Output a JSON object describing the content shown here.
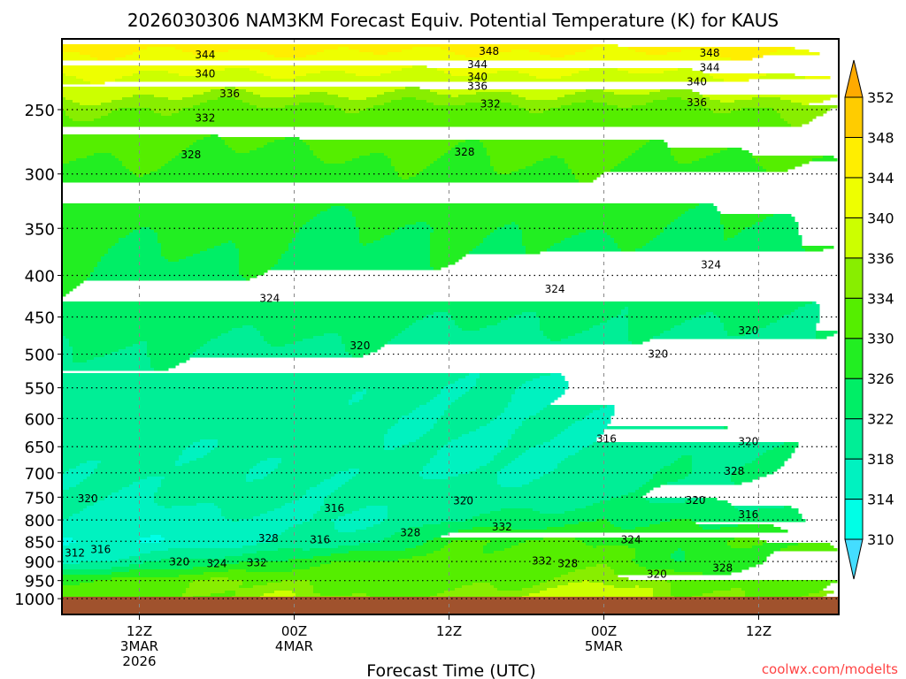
{
  "chart_data": {
    "type": "heatmap",
    "title": "2026030306 NAM3KM Forecast Equiv. Potential Temperature (K) for KAUS",
    "xlabel": "Forecast Time (UTC)",
    "ylabel": "",
    "credit": "coolwx.com/modelts",
    "x_units": "forecast hours",
    "xlim": [
      0,
      60
    ],
    "ylim_hpa": [
      1000,
      209
    ],
    "y_ticks": [
      250,
      300,
      350,
      400,
      450,
      500,
      550,
      600,
      650,
      700,
      750,
      800,
      850,
      900,
      950,
      1000
    ],
    "x_ticks": [
      {
        "hour": 6,
        "lines": [
          "12Z",
          "3MAR",
          "2026"
        ]
      },
      {
        "hour": 18,
        "lines": [
          "00Z",
          "4MAR"
        ]
      },
      {
        "hour": 30,
        "lines": [
          "12Z"
        ]
      },
      {
        "hour": 42,
        "lines": [
          "00Z",
          "5MAR"
        ]
      },
      {
        "hour": 54,
        "lines": [
          "12Z"
        ]
      }
    ],
    "colorbar": {
      "levels": [
        310,
        314,
        318,
        322,
        326,
        330,
        334,
        336,
        340,
        344,
        348,
        352
      ],
      "labels": [
        "310",
        "314",
        "318",
        "322",
        "326",
        "330",
        "334",
        "336",
        "340",
        "344",
        "348",
        "352"
      ],
      "colors": [
        "#44ddff",
        "#00ffe6",
        "#00f2c0",
        "#00ee96",
        "#00ee66",
        "#22ee22",
        "#55ee00",
        "#88ee00",
        "#ccff00",
        "#eeff00",
        "#ffee00",
        "#ffcc00",
        "#ffaa00"
      ]
    },
    "ground_color": "#a0522d",
    "times": [
      0,
      6,
      12,
      18,
      24,
      30,
      36,
      42,
      48,
      54,
      60
    ],
    "pressures": [
      200,
      250,
      300,
      350,
      400,
      450,
      500,
      550,
      600,
      650,
      700,
      750,
      800,
      850,
      900,
      950,
      1000
    ],
    "theta_e": [
      [
        348,
        348,
        348,
        348,
        348,
        348,
        348,
        348,
        348,
        348,
        348
      ],
      [
        334,
        334,
        333,
        333,
        333,
        333,
        333,
        333,
        333,
        334,
        334
      ],
      [
        329,
        329,
        328,
        328,
        329,
        329,
        330,
        329,
        329,
        329,
        329
      ],
      [
        327,
        327,
        327,
        326,
        326,
        326,
        327,
        327,
        325,
        326,
        327
      ],
      [
        326,
        325,
        325,
        325,
        325,
        325,
        324,
        324,
        324,
        324,
        325
      ],
      [
        324,
        323,
        324,
        324,
        323,
        323,
        322,
        323,
        323,
        322,
        322
      ],
      [
        322,
        322,
        321,
        321,
        321,
        320,
        320,
        320,
        321,
        320,
        320
      ],
      [
        321,
        320,
        320,
        320,
        319,
        318,
        318,
        319,
        319,
        320,
        321
      ],
      [
        320,
        320,
        320,
        320,
        319,
        318,
        318,
        319,
        320,
        321,
        321
      ],
      [
        319,
        318,
        319,
        319,
        319,
        318,
        317,
        318,
        321,
        321,
        321
      ],
      [
        319,
        318,
        319,
        319,
        318,
        318,
        318,
        318,
        323,
        322,
        320
      ],
      [
        319,
        318,
        319,
        319,
        319,
        320,
        320,
        321,
        321,
        321,
        320
      ],
      [
        317,
        316,
        317,
        317,
        318,
        322,
        323,
        326,
        325,
        324,
        322
      ],
      [
        314,
        314,
        316,
        318,
        320,
        330,
        330,
        330,
        328,
        330,
        329
      ],
      [
        316,
        320,
        324,
        328,
        330,
        332,
        332,
        332,
        326,
        330,
        332
      ],
      [
        330,
        332,
        334,
        334,
        332,
        332,
        334,
        336,
        332,
        333,
        333
      ],
      [
        333,
        333,
        334,
        336,
        334,
        334,
        336,
        340,
        334,
        334,
        334
      ]
    ],
    "contour_labels": [
      {
        "v": "344",
        "t": 11.1,
        "p": 214
      },
      {
        "v": "340",
        "t": 11.1,
        "p": 226
      },
      {
        "v": "336",
        "t": 13.0,
        "p": 239
      },
      {
        "v": "332",
        "t": 11.1,
        "p": 256
      },
      {
        "v": "328",
        "t": 10.0,
        "p": 284
      },
      {
        "v": "324",
        "t": 16.1,
        "p": 427
      },
      {
        "v": "320",
        "t": 23.1,
        "p": 488
      },
      {
        "v": "320",
        "t": 2.0,
        "p": 753
      },
      {
        "v": "316",
        "t": 21.1,
        "p": 774
      },
      {
        "v": "312",
        "t": 1.0,
        "p": 879
      },
      {
        "v": "316",
        "t": 3.0,
        "p": 870
      },
      {
        "v": "320",
        "t": 9.1,
        "p": 901
      },
      {
        "v": "324",
        "t": 12.0,
        "p": 905
      },
      {
        "v": "332",
        "t": 15.1,
        "p": 903
      },
      {
        "v": "328",
        "t": 16.0,
        "p": 843
      },
      {
        "v": "316",
        "t": 20.0,
        "p": 846
      },
      {
        "v": "328",
        "t": 27.0,
        "p": 829
      },
      {
        "v": "320",
        "t": 31.1,
        "p": 758
      },
      {
        "v": "332",
        "t": 34.1,
        "p": 816
      },
      {
        "v": "328",
        "t": 31.2,
        "p": 282
      },
      {
        "v": "332",
        "t": 33.2,
        "p": 246
      },
      {
        "v": "348",
        "t": 33.1,
        "p": 212
      },
      {
        "v": "344",
        "t": 32.2,
        "p": 220
      },
      {
        "v": "340",
        "t": 32.2,
        "p": 228
      },
      {
        "v": "336",
        "t": 32.2,
        "p": 234
      },
      {
        "v": "324",
        "t": 38.2,
        "p": 416
      },
      {
        "v": "316",
        "t": 42.2,
        "p": 636
      },
      {
        "v": "324",
        "t": 44.1,
        "p": 846
      },
      {
        "v": "332",
        "t": 37.2,
        "p": 899
      },
      {
        "v": "328",
        "t": 39.2,
        "p": 905
      },
      {
        "v": "320",
        "t": 46.1,
        "p": 933
      },
      {
        "v": "320",
        "t": 46.2,
        "p": 500
      },
      {
        "v": "348",
        "t": 50.2,
        "p": 213
      },
      {
        "v": "344",
        "t": 50.2,
        "p": 222
      },
      {
        "v": "340",
        "t": 49.2,
        "p": 231
      },
      {
        "v": "336",
        "t": 49.2,
        "p": 245
      },
      {
        "v": "324",
        "t": 50.3,
        "p": 388
      },
      {
        "v": "320",
        "t": 53.2,
        "p": 468
      },
      {
        "v": "320",
        "t": 53.2,
        "p": 641
      },
      {
        "v": "328",
        "t": 52.1,
        "p": 697
      },
      {
        "v": "320",
        "t": 49.1,
        "p": 757
      },
      {
        "v": "316",
        "t": 53.2,
        "p": 788
      },
      {
        "v": "328",
        "t": 51.2,
        "p": 917
      }
    ]
  }
}
